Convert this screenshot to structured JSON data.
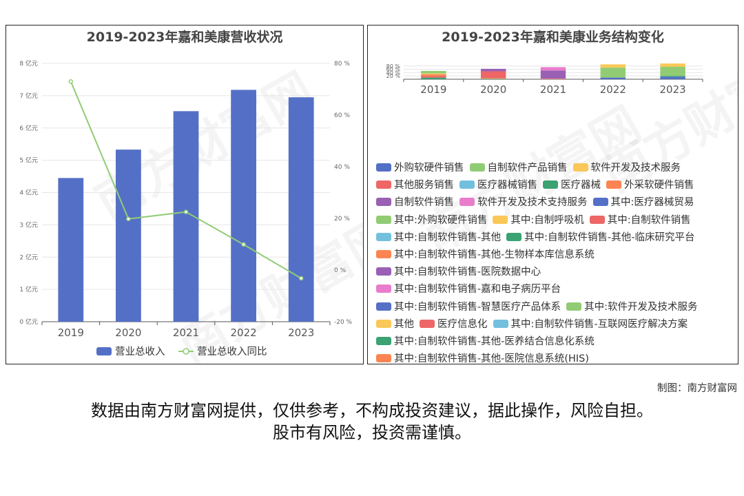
{
  "left_title": "2019-2023年嘉和美康营收状况",
  "right_title": "2019-2023年嘉和美康业务结构变化",
  "watermark": "南方财富网",
  "credit": "制图：南方财富网",
  "disclaimer_line1": "数据由南方财富网提供，仅供参考，不构成投资建议，据此操作，风险自担。",
  "disclaimer_line2": "股市有风险，投资需谨慎。",
  "chart_data": [
    {
      "type": "bar",
      "title": "2019-2023年嘉和美康营收状况",
      "categories": [
        "2019",
        "2020",
        "2021",
        "2022",
        "2023"
      ],
      "y_ticks": [
        "0 亿元",
        "1 亿元",
        "2 亿元",
        "3 亿元",
        "4 亿元",
        "5 亿元",
        "6 亿元",
        "7 亿元",
        "8 亿元"
      ],
      "y2_ticks": [
        "-20 %",
        "0 %",
        "20 %",
        "40 %",
        "60 %",
        "80 %"
      ],
      "ylim": [
        0,
        8
      ],
      "y2lim": [
        -20,
        80
      ],
      "legend_position": "bottom",
      "series": [
        {
          "name": "营业总收入",
          "type": "bar",
          "axis": "left",
          "color": "#5470c6",
          "values": [
            4.45,
            5.33,
            6.52,
            7.18,
            6.95
          ]
        },
        {
          "name": "营业总收入同比",
          "type": "line",
          "axis": "right",
          "color": "#91cc75",
          "values": [
            73.0,
            19.8,
            22.5,
            9.9,
            -3.2
          ]
        }
      ]
    },
    {
      "type": "bar",
      "stacked": true,
      "title": "2019-2023年嘉和美康业务结构变化",
      "categories": [
        "2019",
        "2020",
        "2021",
        "2022",
        "2023"
      ],
      "y_ticks": [
        "20 %",
        "40 %",
        "60 %",
        "80 %"
      ],
      "ylim": [
        0,
        100
      ],
      "legend_position": "bottom",
      "stacks": [
        [
          {
            "color": "#3ba272",
            "value": 10
          },
          {
            "color": "#ee6666",
            "value": 10
          },
          {
            "color": "#fc8452",
            "value": 10
          },
          {
            "color": "#fac858",
            "value": 5
          },
          {
            "color": "#91cc75",
            "value": 15
          }
        ],
        [
          {
            "color": "#3ba272",
            "value": 3
          },
          {
            "color": "#fc8452",
            "value": 5
          },
          {
            "color": "#ee6666",
            "value": 40
          },
          {
            "color": "#9a60b4",
            "value": 15
          }
        ],
        [
          {
            "color": "#fc8452",
            "value": 3
          },
          {
            "color": "#9a60b4",
            "value": 50
          },
          {
            "color": "#ea7ccc",
            "value": 20
          }
        ],
        [
          {
            "color": "#5470c6",
            "value": 10
          },
          {
            "color": "#91cc75",
            "value": 60
          },
          {
            "color": "#fac858",
            "value": 20
          }
        ],
        [
          {
            "color": "#5470c6",
            "value": 15
          },
          {
            "color": "#3ba272",
            "value": 5
          },
          {
            "color": "#91cc75",
            "value": 55
          },
          {
            "color": "#fac858",
            "value": 20
          }
        ]
      ],
      "legend": [
        [
          {
            "name": "外购软硬件销售",
            "color": "#5470c6"
          },
          {
            "name": "自制软件产品销售",
            "color": "#91cc75"
          },
          {
            "name": "软件开发及技术服务",
            "color": "#fac858"
          }
        ],
        [
          {
            "name": "其他服务销售",
            "color": "#ee6666"
          },
          {
            "name": "医疗器械销售",
            "color": "#73c0de"
          },
          {
            "name": "医疗器械",
            "color": "#3ba272"
          },
          {
            "name": "外采软硬件销售",
            "color": "#fc8452"
          }
        ],
        [
          {
            "name": "自制软件销售",
            "color": "#9a60b4"
          },
          {
            "name": "软件开发及技术支持服务",
            "color": "#ea7ccc"
          },
          {
            "name": "其中:医疗器械贸易",
            "color": "#5470c6"
          }
        ],
        [
          {
            "name": "其中:外购软硬件销售",
            "color": "#91cc75"
          },
          {
            "name": "其中:自制呼吸机",
            "color": "#fac858"
          },
          {
            "name": "其中:自制软件销售",
            "color": "#ee6666"
          }
        ],
        [
          {
            "name": "其中:自制软件销售-其他",
            "color": "#73c0de"
          },
          {
            "name": "其中:自制软件销售-其他-临床研究平台",
            "color": "#3ba272"
          }
        ],
        [
          {
            "name": "其中:自制软件销售-其他-生物样本库信息系统",
            "color": "#fc8452"
          }
        ],
        [
          {
            "name": "其中:自制软件销售-医院数据中心",
            "color": "#9a60b4"
          }
        ],
        [
          {
            "name": "其中:自制软件销售-嘉和电子病历平台",
            "color": "#ea7ccc"
          }
        ],
        [
          {
            "name": "其中:自制软件销售-智慧医疗产品体系",
            "color": "#5470c6"
          },
          {
            "name": "其中:软件开发及技术服务",
            "color": "#91cc75"
          }
        ],
        [
          {
            "name": "其他",
            "color": "#fac858"
          },
          {
            "name": "医疗信息化",
            "color": "#ee6666"
          },
          {
            "name": "其中:自制软件销售-互联网医疗解决方案",
            "color": "#73c0de"
          }
        ],
        [
          {
            "name": "其中:自制软件销售-其他-医养结合信息化系统",
            "color": "#3ba272"
          }
        ],
        [
          {
            "name": "其中:自制软件销售-其他-医院信息系统(HIS)",
            "color": "#fc8452"
          }
        ]
      ]
    }
  ]
}
